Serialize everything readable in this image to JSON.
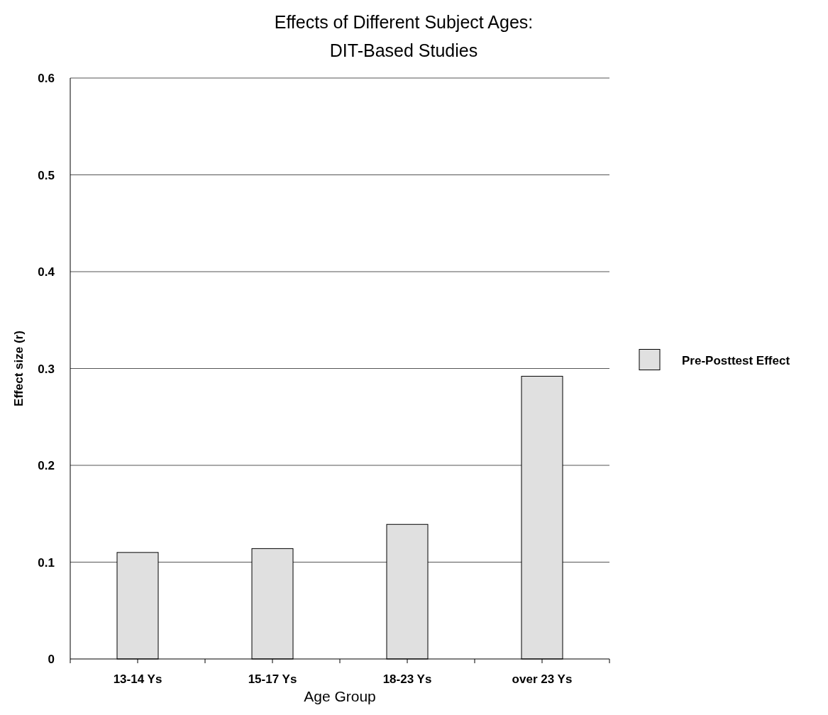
{
  "chart_data": {
    "type": "bar",
    "title": "Effects of Different Subject Ages:\nDIT-Based Studies",
    "xlabel": "Age Group",
    "ylabel": "Effect size (r)",
    "categories": [
      "13-14 Ys",
      "15-17 Ys",
      "18-23 Ys",
      "over 23 Ys"
    ],
    "series": [
      {
        "name": "Pre-Posttest Effect",
        "color": "#e0e0e0",
        "values": [
          0.11,
          0.114,
          0.139,
          0.292
        ]
      }
    ],
    "ylim": [
      0,
      0.6
    ],
    "yticks": [
      {
        "value": 0,
        "label": "0"
      },
      0.1,
      0.2,
      0.3,
      0.4,
      0.5,
      0.6
    ],
    "grid": "y",
    "legend": "right"
  }
}
